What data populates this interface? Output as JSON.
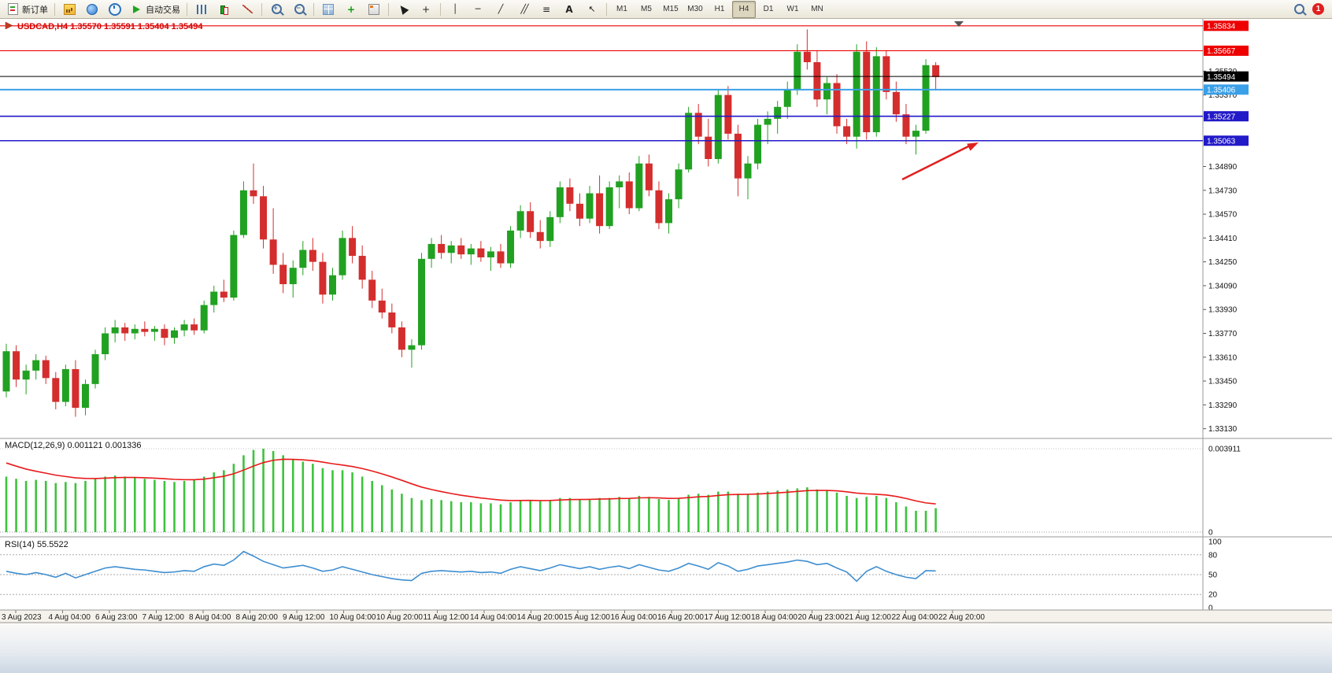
{
  "toolbar": {
    "new_order_label": "新订单",
    "autotrading_label": "自动交易",
    "notification_count": "1",
    "timeframes": [
      "M1",
      "M5",
      "M15",
      "M30",
      "H1",
      "H4",
      "D1",
      "W1",
      "MN"
    ],
    "active_timeframe": "H4",
    "buttons": [
      {
        "name": "new-order-button",
        "icon": "doc",
        "label": "新订单"
      },
      {
        "sep": true
      },
      {
        "name": "new-chart-button",
        "icon": "chart"
      },
      {
        "name": "profiles-button",
        "icon": "globe"
      },
      {
        "name": "refresh-button",
        "icon": "clock"
      },
      {
        "name": "autotrading-button",
        "icon": "play",
        "label": "自动交易"
      },
      {
        "sep": true
      },
      {
        "name": "bar-chart-button",
        "icon": "bars"
      },
      {
        "name": "candlestick-button",
        "icon": "candle"
      },
      {
        "name": "line-chart-button",
        "icon": "linechart"
      },
      {
        "sep": true
      },
      {
        "name": "zoom-in-button",
        "icon": "zoomin"
      },
      {
        "name": "zoom-out-button",
        "icon": "zoomout"
      },
      {
        "sep": true
      },
      {
        "name": "tile-windows-button",
        "icon": "grid"
      },
      {
        "name": "indicators-button",
        "icon": "plusgreen"
      },
      {
        "name": "templates-button",
        "icon": "template"
      },
      {
        "sep": true
      },
      {
        "name": "cursor-button",
        "icon": "cursor"
      },
      {
        "name": "crosshair-button",
        "icon": "cross"
      },
      {
        "sep": true
      },
      {
        "name": "vertical-line-button",
        "icon": "vline"
      },
      {
        "name": "horizontal-line-button",
        "icon": "hline"
      },
      {
        "name": "trendline-button",
        "icon": "trend"
      },
      {
        "name": "equidistant-channel-button",
        "icon": "channel"
      },
      {
        "name": "fibonacci-button",
        "icon": "fibo"
      },
      {
        "name": "text-button",
        "icon": "text"
      },
      {
        "name": "arrows-button",
        "icon": "arrowdraw"
      },
      {
        "sep": true
      }
    ]
  },
  "chart": {
    "title": "USDCAD,H4 1.35570 1.35591 1.35404 1.35494",
    "symbol": "USDCAD",
    "period": "H4"
  },
  "chart_data": {
    "type": "candlestick",
    "title": "USDCAD,H4",
    "open": "1.35570",
    "high": "1.35591",
    "low": "1.35404",
    "close": "1.35494",
    "colors": {
      "up": "#21a121",
      "down": "#d42d2d",
      "macd_hist": "#3dc33d",
      "macd_signal": "#e81a1a",
      "rsi": "#3e8ed0",
      "red": "#ee0000",
      "blue": "#2219c8",
      "lightblue": "#3aa0e8",
      "black": "#000000",
      "arrow": "#e02020",
      "title": "#d40000"
    },
    "price_axis": {
      "min": 1.3307,
      "max": 1.3587,
      "ticks": [
        "1.35530",
        "1.35370",
        "1.34890",
        "1.34730",
        "1.34570",
        "1.34410",
        "1.34250",
        "1.34090",
        "1.33930",
        "1.33770",
        "1.33610",
        "1.33450",
        "1.33290",
        "1.33130"
      ]
    },
    "x_labels": [
      "3 Aug 2023",
      "4 Aug 04:00",
      "6 Aug 23:00",
      "7 Aug 12:00",
      "8 Aug 04:00",
      "8 Aug 20:00",
      "9 Aug 12:00",
      "10 Aug 04:00",
      "10 Aug 20:00",
      "11 Aug 12:00",
      "14 Aug 04:00",
      "14 Aug 20:00",
      "15 Aug 12:00",
      "16 Aug 04:00",
      "16 Aug 20:00",
      "17 Aug 12:00",
      "18 Aug 04:00",
      "20 Aug 23:00",
      "21 Aug 12:00",
      "22 Aug 04:00",
      "22 Aug 20:00"
    ],
    "hlines": [
      {
        "price": "1.35834",
        "color": "red"
      },
      {
        "price": "1.35667",
        "color": "red"
      },
      {
        "price": "1.35494",
        "color": "black"
      },
      {
        "price": "1.35406",
        "color": "lightblue"
      },
      {
        "price": "1.35227",
        "color": "blue"
      },
      {
        "price": "1.35063",
        "color": "blue"
      }
    ],
    "annotations": [
      {
        "type": "arrow",
        "color": "#e02020",
        "points_to": "1.35063"
      }
    ],
    "candles": [
      [
        1.3338,
        1.337,
        1.3334,
        1.3365
      ],
      [
        1.3365,
        1.3369,
        1.3341,
        1.3346
      ],
      [
        1.3346,
        1.3356,
        1.3336,
        1.3352
      ],
      [
        1.3352,
        1.3363,
        1.3346,
        1.3359
      ],
      [
        1.3359,
        1.3362,
        1.3343,
        1.3347
      ],
      [
        1.3347,
        1.3351,
        1.3326,
        1.3331
      ],
      [
        1.3331,
        1.3356,
        1.3328,
        1.3353
      ],
      [
        1.3353,
        1.3359,
        1.3321,
        1.3327
      ],
      [
        1.3327,
        1.3346,
        1.3322,
        1.3343
      ],
      [
        1.3343,
        1.3366,
        1.334,
        1.3363
      ],
      [
        1.3363,
        1.3381,
        1.3359,
        1.3377
      ],
      [
        1.3377,
        1.3386,
        1.3371,
        1.3381
      ],
      [
        1.3381,
        1.3384,
        1.3372,
        1.3377
      ],
      [
        1.3377,
        1.3383,
        1.3373,
        1.338
      ],
      [
        1.338,
        1.3385,
        1.3375,
        1.3378
      ],
      [
        1.3378,
        1.3382,
        1.3372,
        1.338
      ],
      [
        1.338,
        1.3383,
        1.3369,
        1.3374
      ],
      [
        1.3374,
        1.3381,
        1.337,
        1.3379
      ],
      [
        1.3379,
        1.3386,
        1.3375,
        1.3383
      ],
      [
        1.3383,
        1.3387,
        1.3376,
        1.3379
      ],
      [
        1.3379,
        1.3399,
        1.3377,
        1.3396
      ],
      [
        1.3396,
        1.3409,
        1.3391,
        1.3405
      ],
      [
        1.3405,
        1.3413,
        1.3398,
        1.3401
      ],
      [
        1.3401,
        1.3446,
        1.3399,
        1.3443
      ],
      [
        1.3443,
        1.3479,
        1.3441,
        1.3473
      ],
      [
        1.3473,
        1.3491,
        1.3464,
        1.3469
      ],
      [
        1.3469,
        1.3476,
        1.3434,
        1.344
      ],
      [
        1.344,
        1.3461,
        1.3417,
        1.3423
      ],
      [
        1.3423,
        1.3431,
        1.3404,
        1.341
      ],
      [
        1.341,
        1.3426,
        1.3401,
        1.3421
      ],
      [
        1.3421,
        1.3439,
        1.3416,
        1.3433
      ],
      [
        1.3433,
        1.3441,
        1.3419,
        1.3425
      ],
      [
        1.3425,
        1.3431,
        1.3397,
        1.3403
      ],
      [
        1.3403,
        1.3421,
        1.3399,
        1.3416
      ],
      [
        1.3416,
        1.3446,
        1.3413,
        1.3441
      ],
      [
        1.3441,
        1.3449,
        1.3424,
        1.3429
      ],
      [
        1.3429,
        1.3436,
        1.3407,
        1.3413
      ],
      [
        1.3413,
        1.3419,
        1.3394,
        1.3399
      ],
      [
        1.3399,
        1.3407,
        1.3387,
        1.3391
      ],
      [
        1.3391,
        1.3397,
        1.3377,
        1.3381
      ],
      [
        1.3381,
        1.3385,
        1.3361,
        1.3366
      ],
      [
        1.3366,
        1.3373,
        1.3354,
        1.3369
      ],
      [
        1.3369,
        1.3431,
        1.3366,
        1.3427
      ],
      [
        1.3427,
        1.3441,
        1.3421,
        1.3437
      ],
      [
        1.3437,
        1.3443,
        1.3427,
        1.3431
      ],
      [
        1.3431,
        1.3439,
        1.3424,
        1.3436
      ],
      [
        1.3436,
        1.3441,
        1.3427,
        1.343
      ],
      [
        1.343,
        1.3437,
        1.3423,
        1.3434
      ],
      [
        1.3434,
        1.3439,
        1.3425,
        1.3428
      ],
      [
        1.3428,
        1.3435,
        1.3419,
        1.3432
      ],
      [
        1.3432,
        1.3437,
        1.3421,
        1.3424
      ],
      [
        1.3424,
        1.3449,
        1.3421,
        1.3446
      ],
      [
        1.3446,
        1.3463,
        1.3441,
        1.3459
      ],
      [
        1.3459,
        1.3465,
        1.3441,
        1.3445
      ],
      [
        1.3445,
        1.3453,
        1.3434,
        1.3439
      ],
      [
        1.3439,
        1.3459,
        1.3435,
        1.3455
      ],
      [
        1.3455,
        1.3479,
        1.3451,
        1.3475
      ],
      [
        1.3475,
        1.3481,
        1.3459,
        1.3464
      ],
      [
        1.3464,
        1.3471,
        1.3449,
        1.3454
      ],
      [
        1.3454,
        1.3476,
        1.3451,
        1.3471
      ],
      [
        1.3471,
        1.3483,
        1.3444,
        1.3449
      ],
      [
        1.3449,
        1.3479,
        1.3447,
        1.3475
      ],
      [
        1.3475,
        1.3483,
        1.3461,
        1.3479
      ],
      [
        1.3479,
        1.3485,
        1.3457,
        1.3461
      ],
      [
        1.3461,
        1.3496,
        1.3459,
        1.3491
      ],
      [
        1.3491,
        1.3497,
        1.3469,
        1.3473
      ],
      [
        1.3473,
        1.3479,
        1.3447,
        1.3451
      ],
      [
        1.3451,
        1.3471,
        1.3444,
        1.3467
      ],
      [
        1.3467,
        1.3491,
        1.3461,
        1.3487
      ],
      [
        1.3487,
        1.3529,
        1.3485,
        1.3525
      ],
      [
        1.3525,
        1.3531,
        1.3504,
        1.3509
      ],
      [
        1.3509,
        1.3521,
        1.3489,
        1.3494
      ],
      [
        1.3494,
        1.3541,
        1.3491,
        1.3537
      ],
      [
        1.3537,
        1.3543,
        1.3507,
        1.3511
      ],
      [
        1.3511,
        1.3517,
        1.3469,
        1.3481
      ],
      [
        1.3481,
        1.3496,
        1.3467,
        1.3491
      ],
      [
        1.3491,
        1.3521,
        1.3487,
        1.3517
      ],
      [
        1.3517,
        1.3526,
        1.3504,
        1.3521
      ],
      [
        1.3521,
        1.3533,
        1.3511,
        1.3529
      ],
      [
        1.3529,
        1.3546,
        1.3521,
        1.3541
      ],
      [
        1.3541,
        1.3571,
        1.3537,
        1.3566
      ],
      [
        1.3566,
        1.3581,
        1.3554,
        1.3559
      ],
      [
        1.3559,
        1.3567,
        1.3529,
        1.3534
      ],
      [
        1.3534,
        1.3549,
        1.3524,
        1.3545
      ],
      [
        1.3545,
        1.3551,
        1.3511,
        1.3516
      ],
      [
        1.3516,
        1.3521,
        1.3504,
        1.3509
      ],
      [
        1.3509,
        1.3571,
        1.3501,
        1.3566
      ],
      [
        1.3566,
        1.3573,
        1.3507,
        1.3512
      ],
      [
        1.3512,
        1.3569,
        1.3509,
        1.3563
      ],
      [
        1.3563,
        1.3567,
        1.3534,
        1.3539
      ],
      [
        1.3539,
        1.3546,
        1.3519,
        1.3524
      ],
      [
        1.3524,
        1.3531,
        1.3504,
        1.3509
      ],
      [
        1.3509,
        1.3517,
        1.3497,
        1.3513
      ],
      [
        1.3513,
        1.3561,
        1.3511,
        1.3557
      ],
      [
        1.3557,
        1.3559,
        1.354,
        1.3549
      ]
    ],
    "indicators": [
      {
        "name": "MACD",
        "label": "MACD(12,26,9) 0.001121 0.001336",
        "scale_top": "0.003911",
        "scale_bottom": "0",
        "histogram": [
          0.0026,
          0.0025,
          0.0024,
          0.00245,
          0.0024,
          0.0023,
          0.00235,
          0.0023,
          0.0024,
          0.0025,
          0.0026,
          0.00265,
          0.0026,
          0.00255,
          0.0025,
          0.00245,
          0.0024,
          0.00235,
          0.0024,
          0.00245,
          0.0026,
          0.0028,
          0.0029,
          0.0032,
          0.0036,
          0.00385,
          0.003911,
          0.0038,
          0.0036,
          0.0034,
          0.0033,
          0.0032,
          0.003,
          0.0029,
          0.0029,
          0.0028,
          0.0026,
          0.0024,
          0.0022,
          0.002,
          0.0018,
          0.0016,
          0.0015,
          0.00155,
          0.0015,
          0.00145,
          0.0014,
          0.0014,
          0.00135,
          0.00135,
          0.0013,
          0.0014,
          0.0015,
          0.0015,
          0.00145,
          0.0015,
          0.0016,
          0.0016,
          0.00155,
          0.00155,
          0.0016,
          0.0016,
          0.00165,
          0.0016,
          0.0017,
          0.00165,
          0.00155,
          0.0015,
          0.0016,
          0.00175,
          0.0018,
          0.00175,
          0.0019,
          0.0019,
          0.0018,
          0.0018,
          0.00185,
          0.0019,
          0.00195,
          0.002,
          0.00205,
          0.0021,
          0.002,
          0.00195,
          0.00185,
          0.0017,
          0.0016,
          0.00165,
          0.0017,
          0.0016,
          0.0014,
          0.0012,
          0.001,
          0.001,
          0.001121
        ]
      },
      {
        "name": "RSI",
        "label": "RSI(14) 55.5522",
        "scale": [
          "100",
          "80",
          "50",
          "20",
          "0"
        ],
        "levels": [
          80,
          50,
          20
        ],
        "values": [
          55,
          52,
          50,
          53,
          50,
          46,
          52,
          45,
          50,
          55,
          60,
          62,
          60,
          58,
          57,
          55,
          53,
          54,
          56,
          55,
          62,
          66,
          64,
          72,
          85,
          78,
          70,
          65,
          60,
          62,
          64,
          60,
          55,
          57,
          62,
          58,
          54,
          50,
          47,
          44,
          42,
          41,
          52,
          55,
          56,
          55,
          54,
          55,
          53,
          54,
          52,
          58,
          62,
          59,
          56,
          60,
          65,
          62,
          59,
          62,
          58,
          61,
          63,
          59,
          65,
          61,
          57,
          55,
          60,
          67,
          63,
          58,
          68,
          63,
          55,
          58,
          63,
          65,
          67,
          69,
          72,
          70,
          65,
          67,
          60,
          54,
          40,
          55,
          62,
          55,
          50,
          46,
          44,
          56,
          55.55
        ]
      }
    ]
  }
}
